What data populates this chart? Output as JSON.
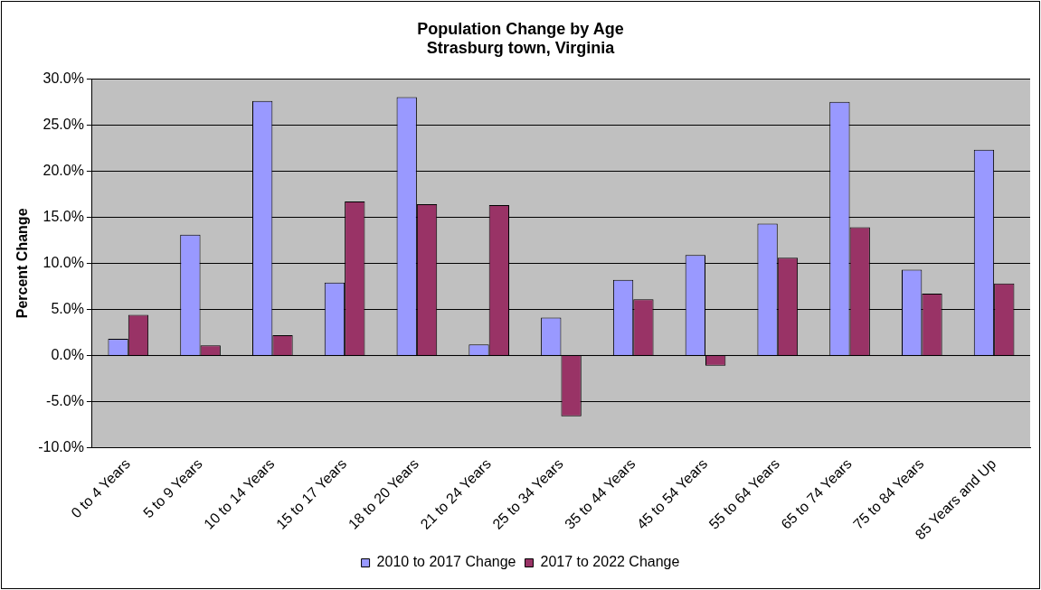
{
  "chart_data": {
    "type": "bar",
    "title": "Population Change by Age",
    "subtitle": "Strasburg town, Virginia",
    "ylabel": "Percent Change",
    "categories": [
      "0 to 4 Years",
      "5 to 9 Years",
      "10 to 14 Years",
      "15 to 17 Years",
      "18 to 20 Years",
      "21 to 24 Years",
      "25 to 34 Years",
      "35 to 44 Years",
      "45 to 54 Years",
      "55 to 64 Years",
      "65 to 74 Years",
      "75 to 84 Years",
      "85 Years and Up"
    ],
    "series": [
      {
        "name": "2010 to 2017 Change",
        "color": "#9999ff",
        "values": [
          1.8,
          13.1,
          27.6,
          7.9,
          28.0,
          1.2,
          4.1,
          8.2,
          10.9,
          14.3,
          27.5,
          9.3,
          22.3
        ]
      },
      {
        "name": "2017 to 2022 Change",
        "color": "#993366",
        "values": [
          4.4,
          1.1,
          2.2,
          16.7,
          16.4,
          16.3,
          -6.6,
          6.1,
          -1.1,
          10.6,
          13.9,
          6.7,
          7.8
        ]
      }
    ],
    "ylim": [
      -10,
      30
    ],
    "yticks": [
      {
        "value": -10,
        "label": "-10.0%"
      },
      {
        "value": -5,
        "label": "-5.0%"
      },
      {
        "value": 0,
        "label": "0.0%"
      },
      {
        "value": 5,
        "label": "5.0%"
      },
      {
        "value": 10,
        "label": "10.0%"
      },
      {
        "value": 15,
        "label": "15.0%"
      },
      {
        "value": 20,
        "label": "20.0%"
      },
      {
        "value": 25,
        "label": "25.0%"
      },
      {
        "value": 30,
        "label": "30.0%"
      }
    ],
    "grid": "y",
    "legend": "bottom"
  }
}
